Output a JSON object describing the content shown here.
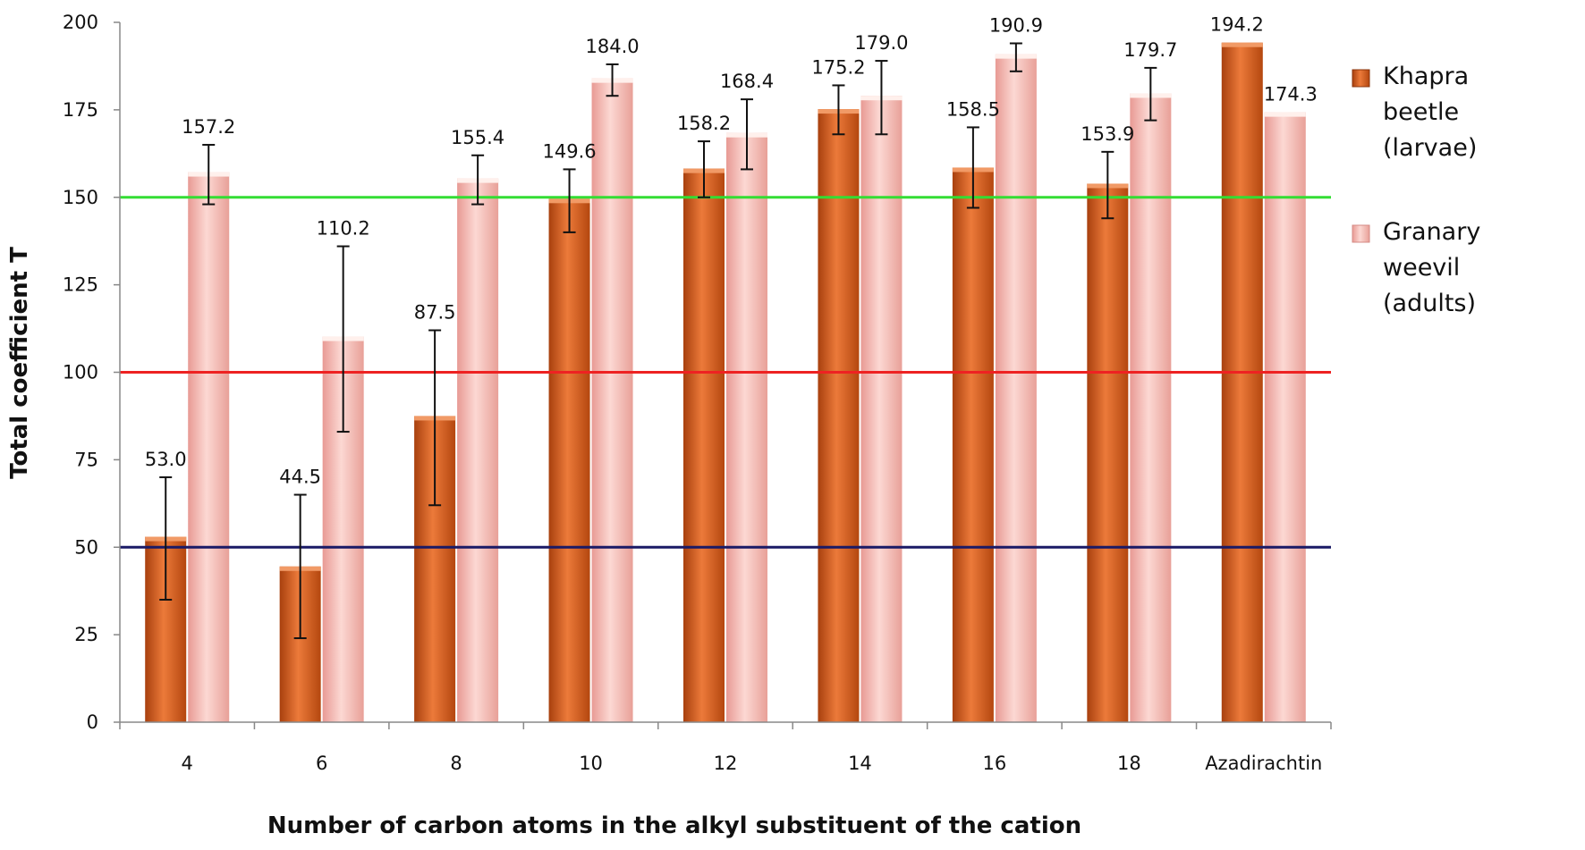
{
  "chart_data": {
    "type": "bar",
    "categories": [
      "4",
      "6",
      "8",
      "10",
      "12",
      "14",
      "16",
      "18",
      "Azadirachtin"
    ],
    "series": [
      {
        "name": "Khapra beetle (larvae)",
        "legend_lines": [
          "Khapra",
          "beetle",
          "(larvae)"
        ],
        "values": [
          53.0,
          44.5,
          87.5,
          149.6,
          158.2,
          175.2,
          158.5,
          153.9,
          194.2
        ],
        "labels": [
          "53.0",
          "44.5",
          "87.5",
          "149.6",
          "158.2",
          "175.2",
          "158.5",
          "153.9",
          "194.2"
        ],
        "error_low": [
          35,
          24,
          62,
          140,
          150,
          168,
          147,
          144,
          null
        ],
        "error_high": [
          70,
          65,
          112,
          158,
          166,
          182,
          170,
          163,
          null
        ],
        "color": "#d4571a"
      },
      {
        "name": "Granary weevil (adults)",
        "legend_lines": [
          "Granary",
          "weevil",
          "(adults)"
        ],
        "values": [
          157.2,
          110.2,
          155.4,
          184.0,
          168.4,
          179.0,
          190.9,
          179.7,
          174.3
        ],
        "labels": [
          "157.2",
          "110.2",
          "155.4",
          "184.0",
          "168.4",
          "179.0",
          "190.9",
          "179.7",
          "174.3"
        ],
        "error_low": [
          148,
          83,
          148,
          179,
          158,
          168,
          186,
          172,
          null
        ],
        "error_high": [
          165,
          136,
          162,
          188,
          178,
          189,
          194,
          187,
          null
        ],
        "color": "#f3aba4"
      }
    ],
    "reference_lines": [
      {
        "value": 150,
        "color": "#33dd33"
      },
      {
        "value": 100,
        "color": "#ee2222"
      },
      {
        "value": 50,
        "color": "#1a1a66"
      }
    ],
    "ylim": [
      0,
      200
    ],
    "yticks": [
      0,
      25,
      50,
      75,
      100,
      125,
      150,
      175,
      200
    ],
    "xlabel": "Number of carbon atoms in the alkyl substituent of the cation",
    "ylabel": "Total coefficient T",
    "grid": false,
    "legend": "right"
  }
}
